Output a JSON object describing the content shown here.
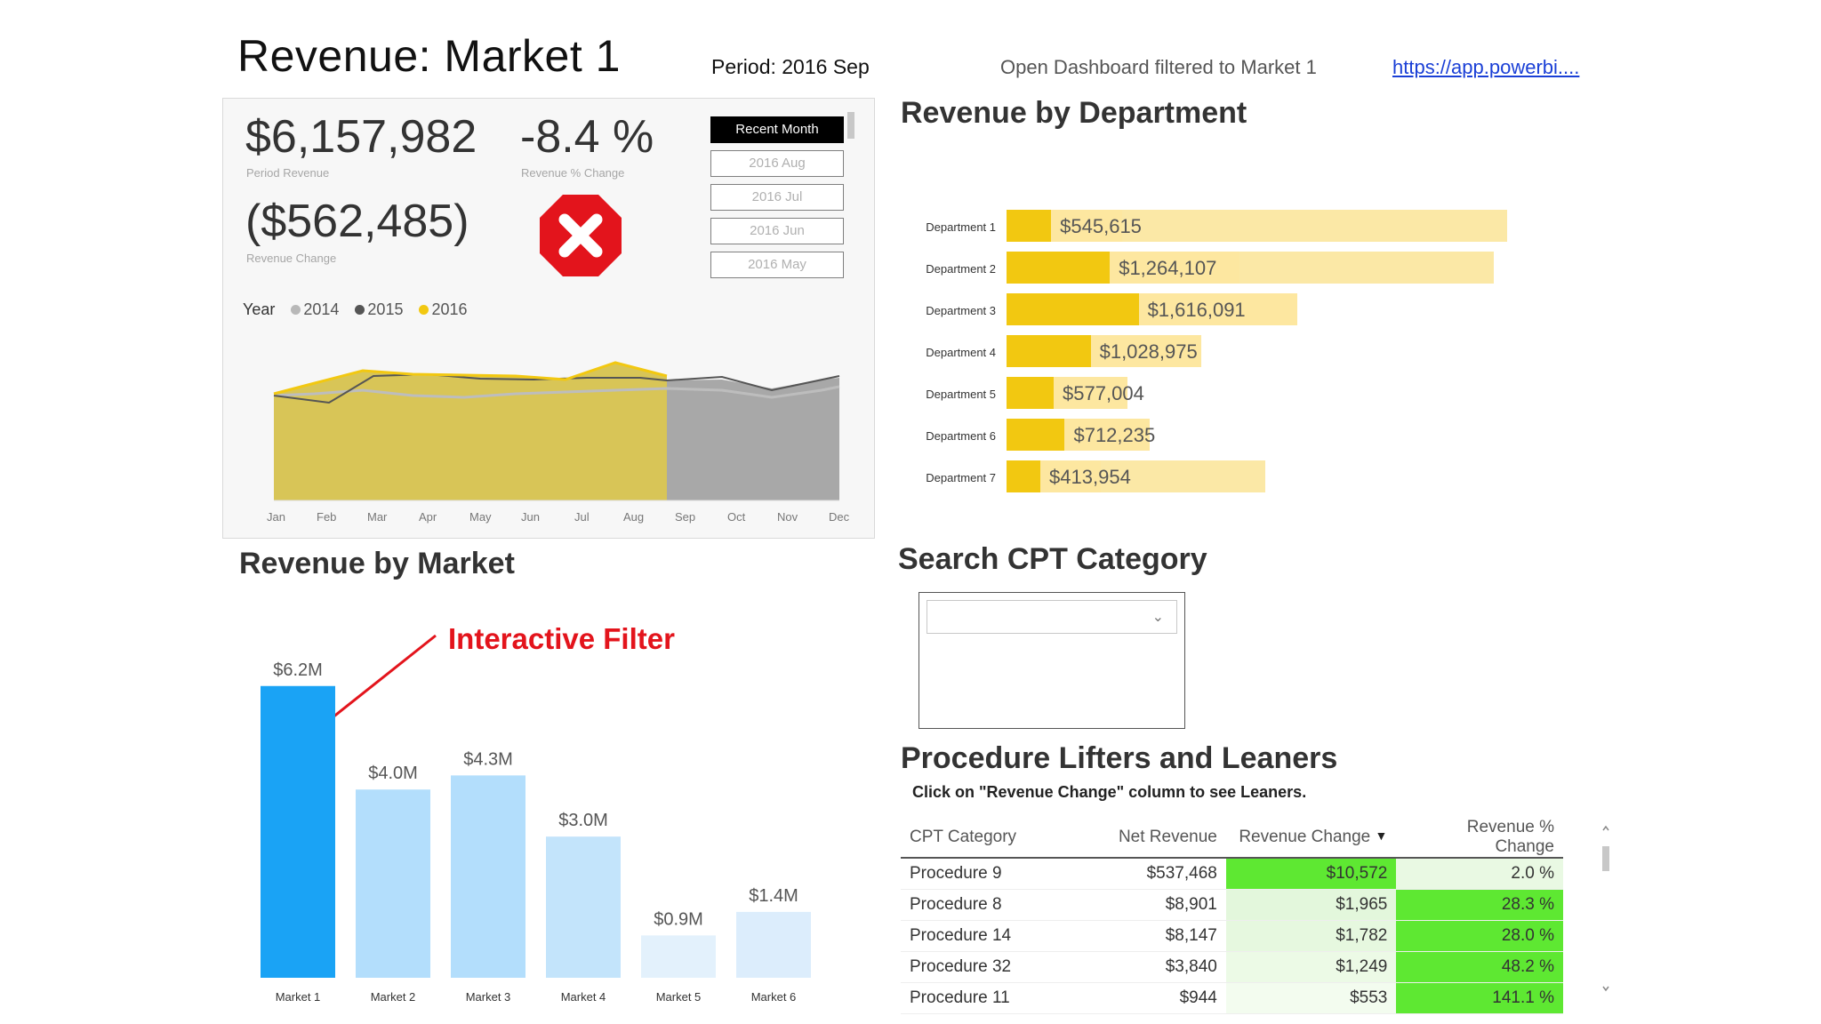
{
  "header": {
    "title": "Revenue: Market 1",
    "period": "Period: 2016 Sep",
    "open_dashboard": "Open Dashboard filtered to Market 1",
    "link_text": "https://app.powerbi...."
  },
  "kpis": {
    "period_revenue": {
      "value": "$6,157,982",
      "label": "Period Revenue"
    },
    "revenue_pct_change": {
      "value": "-8.4 %",
      "label": "Revenue % Change"
    },
    "revenue_change": {
      "value": "($562,485)",
      "label": "Revenue Change"
    },
    "status_icon": "error-x-icon",
    "status_color": "#e3141c"
  },
  "period_slicer": {
    "items": [
      "Recent Month",
      "2016 Aug",
      "2016 Jul",
      "2016 Jun",
      "2016 May"
    ],
    "selected": "Recent Month"
  },
  "trend_chart": {
    "legend_title": "Year",
    "series": [
      {
        "name": "2014",
        "color": "#b8b8b8"
      },
      {
        "name": "2015",
        "color": "#555555"
      },
      {
        "name": "2016",
        "color": "#f2c811"
      }
    ],
    "months": [
      "Jan",
      "Feb",
      "Mar",
      "Apr",
      "May",
      "Jun",
      "Jul",
      "Aug",
      "Sep",
      "Oct",
      "Nov",
      "Dec"
    ]
  },
  "sections": {
    "revenue_by_department": "Revenue by Department",
    "revenue_by_market": "Revenue by Market",
    "search_cpt": "Search CPT Category",
    "lifters_leaners": "Procedure Lifters and Leaners",
    "lifters_hint": "Click on \"Revenue Change\" column to see Leaners."
  },
  "annotation": "Interactive Filter",
  "department_chart": {
    "type": "bar",
    "categories": [
      "Department 1",
      "Department 2",
      "Department 3",
      "Department 4",
      "Department 5",
      "Department 6",
      "Department 7"
    ],
    "values": [
      545615,
      1264107,
      1616091,
      1028975,
      577004,
      712235,
      413954
    ],
    "value_labels": [
      "$545,615",
      "$1,264,107",
      "$1,616,091",
      "$1,028,975",
      "$577,004",
      "$712,235",
      "$413,954"
    ],
    "background_values": [
      3060000,
      2980000,
      null,
      null,
      null,
      null,
      1580000
    ],
    "xlim": [
      0,
      3100000
    ]
  },
  "chart_data": {
    "type": "bar",
    "categories": [
      "Market 1",
      "Market 2",
      "Market 3",
      "Market 4",
      "Market 5",
      "Market 6"
    ],
    "values": [
      6.2,
      4.0,
      4.3,
      3.0,
      0.9,
      1.4
    ],
    "value_labels": [
      "$6.2M",
      "$4.0M",
      "$4.3M",
      "$3.0M",
      "$0.9M",
      "$1.4M"
    ],
    "colors": [
      "#1aa3f5",
      "#b3defc",
      "#b3defc",
      "#c3e4fb",
      "#e3f1fc",
      "#dcedfc"
    ],
    "ylim": [
      0,
      6.8
    ]
  },
  "cpt_search": {
    "selected_value": ""
  },
  "lifters_table": {
    "columns": [
      "CPT Category",
      "Net Revenue",
      "Revenue Change",
      "Revenue % Change"
    ],
    "rows": [
      {
        "category": "Procedure 9",
        "net_revenue": "$537,468",
        "revenue_change": "$10,572",
        "pct_change": "2.0 %",
        "change_color": "#5ee832",
        "pct_color": "#e9f9e3"
      },
      {
        "category": "Procedure 8",
        "net_revenue": "$8,901",
        "revenue_change": "$1,965",
        "pct_change": "28.3 %",
        "change_color": "#e3f7dc",
        "pct_color": "#5ee832"
      },
      {
        "category": "Procedure 14",
        "net_revenue": "$8,147",
        "revenue_change": "$1,782",
        "pct_change": "28.0 %",
        "change_color": "#e6f8df",
        "pct_color": "#5ee832"
      },
      {
        "category": "Procedure 32",
        "net_revenue": "$3,840",
        "revenue_change": "$1,249",
        "pct_change": "48.2 %",
        "change_color": "#ecfae6",
        "pct_color": "#5ee832"
      },
      {
        "category": "Procedure 11",
        "net_revenue": "$944",
        "revenue_change": "$553",
        "pct_change": "141.1 %",
        "change_color": "#f3fcef",
        "pct_color": "#5ee832"
      }
    ]
  }
}
